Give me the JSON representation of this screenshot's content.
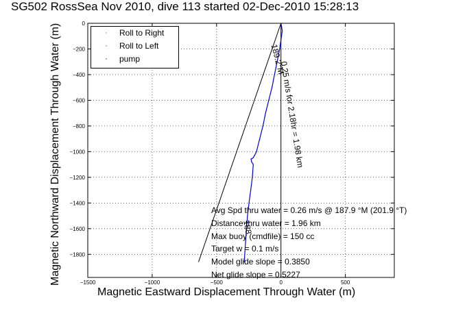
{
  "chart_data": {
    "type": "line",
    "title": "SG502 RossSea Nov 2010, dive 113 started 02-Dec-2010 15:28:13",
    "xlabel": "Magnetic Eastward Displacement Through Water (m)",
    "ylabel": "Magnetic Northward Displacement Through Water (m)",
    "xlim": [
      -1500,
      880
    ],
    "ylim": [
      -1980,
      0
    ],
    "xticks": [
      -1500,
      -1000,
      -500,
      0,
      500
    ],
    "yticks": [
      0,
      -200,
      -400,
      -600,
      -800,
      -1000,
      -1200,
      -1400,
      -1600,
      -1800
    ],
    "grid": true,
    "legend": {
      "position": "top-left",
      "entries": [
        {
          "label": "Roll to Right",
          "marker": "·",
          "color": "#00aa00"
        },
        {
          "label": "Roll to Left",
          "marker": "·",
          "color": "#dd0000"
        },
        {
          "label": "pump",
          "marker": "·",
          "color": "#000000"
        }
      ]
    },
    "series": [
      {
        "color": "#0000cc",
        "x": [
          0,
          5,
          10,
          4,
          -10,
          -30,
          -50,
          -70,
          -95,
          -120,
          -140,
          -165,
          -190,
          -205,
          -218,
          -232,
          -228,
          -215,
          -222,
          -235,
          -248,
          -260,
          -275,
          -285
        ],
        "y": [
          0,
          -30,
          -60,
          -100,
          -200,
          -300,
          -400,
          -500,
          -600,
          -700,
          -800,
          -900,
          -1000,
          -1030,
          -1050,
          -1058,
          -1080,
          -1100,
          -1200,
          -1300,
          -1400,
          -1500,
          -1700,
          -1860
        ]
      }
    ],
    "reference_lines": [
      {
        "color": "#000000",
        "x": [
          0,
          -640
        ],
        "y": [
          0,
          -1860
        ]
      },
      {
        "color": "#000000",
        "x": [
          0,
          0
        ],
        "y": [
          0,
          -1980
        ]
      }
    ],
    "annotations": [
      {
        "text": "0.25 m/s for 2.18hr = 1.98 km",
        "x": 0,
        "y": -300,
        "rotation": 81
      },
      {
        "text": "189.2°M",
        "x": -75,
        "y": -170,
        "rotation": 76
      },
      {
        "text": "188",
        "x": -290,
        "y": -1540,
        "rotation": 80
      }
    ],
    "stats": [
      "Avg Spd thru water =  0.26 m/s @ 187.9    °M (201.9 °T)",
      "Distance thru water =  1.96 km",
      "Max buoy (cmdfile) = 150 cc",
      "Target w = 0.1 m/s",
      "Model glide slope = 0.3850",
      "Net glide slope = 0.5227"
    ]
  }
}
